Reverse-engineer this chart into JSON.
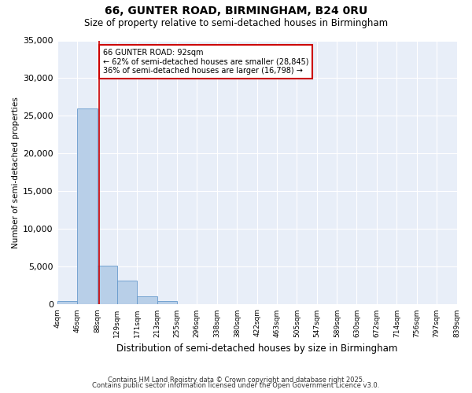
{
  "title": "66, GUNTER ROAD, BIRMINGHAM, B24 0RU",
  "subtitle": "Size of property relative to semi-detached houses in Birmingham",
  "xlabel": "Distribution of semi-detached houses by size in Birmingham",
  "ylabel": "Number of semi-detached properties",
  "annotation_line1": "66 GUNTER ROAD: 92sqm",
  "annotation_line2": "← 62% of semi-detached houses are smaller (28,845)",
  "annotation_line3": "36% of semi-detached houses are larger (16,798) →",
  "bin_edges": [
    4,
    46,
    88,
    129,
    171,
    213,
    255,
    296,
    338,
    380,
    422,
    463,
    505,
    547,
    589,
    630,
    672,
    714,
    756,
    797,
    839
  ],
  "bin_labels": [
    "4sqm",
    "46sqm",
    "88sqm",
    "129sqm",
    "171sqm",
    "213sqm",
    "255sqm",
    "296sqm",
    "338sqm",
    "380sqm",
    "422sqm",
    "463sqm",
    "505sqm",
    "547sqm",
    "589sqm",
    "630sqm",
    "672sqm",
    "714sqm",
    "756sqm",
    "797sqm",
    "839sqm"
  ],
  "counts": [
    480,
    26000,
    5100,
    3200,
    1100,
    480,
    0,
    0,
    0,
    0,
    0,
    0,
    0,
    0,
    0,
    0,
    0,
    0,
    0,
    0
  ],
  "bar_color": "#b8cfe8",
  "bar_edge_color": "#6699cc",
  "vline_color": "#cc0000",
  "vline_x": 92,
  "ylim": [
    0,
    35000
  ],
  "yticks": [
    0,
    5000,
    10000,
    15000,
    20000,
    25000,
    30000,
    35000
  ],
  "bg_color": "#e8eef8",
  "annotation_box_color": "#ffffff",
  "annotation_box_edge": "#cc0000",
  "footnote1": "Contains HM Land Registry data © Crown copyright and database right 2025.",
  "footnote2": "Contains public sector information licensed under the Open Government Licence v3.0."
}
